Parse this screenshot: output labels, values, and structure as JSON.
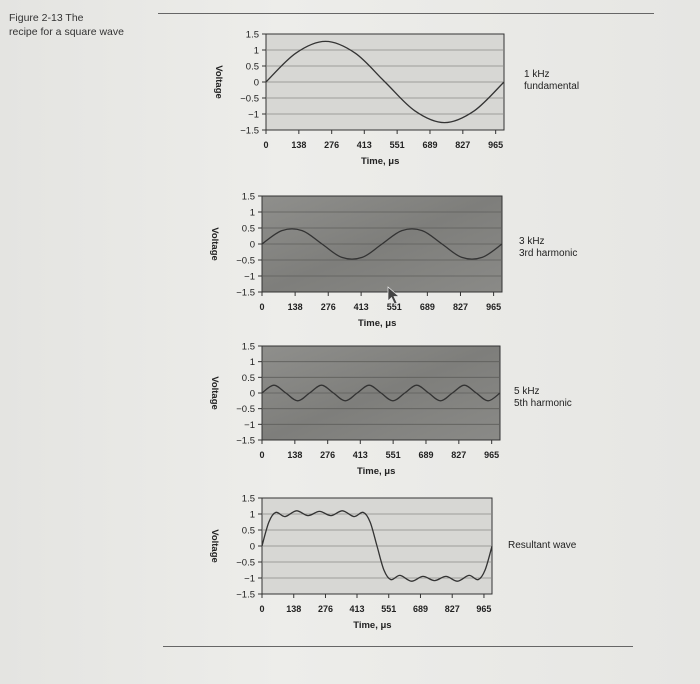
{
  "figure": {
    "caption": "Figure 2-13  The\nrecipe for a square wave"
  },
  "chart_data": [
    {
      "type": "line",
      "xlabel": "Time, μs",
      "ylabel": "Voltage",
      "x_ticks": [
        0,
        138,
        276,
        413,
        551,
        689,
        827,
        965
      ],
      "y_ticks": [
        "1.5",
        "1",
        "0.5",
        "0",
        "−0.5",
        "−1",
        "−1.5"
      ],
      "xlim": [
        0,
        1000
      ],
      "ylim": [
        -1.5,
        1.5
      ],
      "grid": true,
      "side_label": "1 kHz\nfundamental",
      "series": [
        {
          "x": [
            0,
            125,
            250,
            375,
            500,
            625,
            750,
            875,
            1000
          ],
          "values": [
            0,
            0.9,
            1.27,
            0.9,
            0,
            -0.9,
            -1.27,
            -0.9,
            0
          ]
        }
      ]
    },
    {
      "type": "line",
      "xlabel": "Time, μs",
      "ylabel": "Voltage",
      "x_ticks": [
        0,
        138,
        276,
        413,
        551,
        689,
        827,
        965
      ],
      "y_ticks": [
        "1.5",
        "1",
        "0.5",
        "0",
        "−0.5",
        "−1",
        "−1.5"
      ],
      "xlim": [
        0,
        1000
      ],
      "ylim": [
        -1.5,
        1.5
      ],
      "grid": true,
      "side_label": "3 kHz\n3rd harmonic",
      "series": [
        {
          "x": [
            0,
            83,
            167,
            250,
            333,
            417,
            500,
            583,
            667,
            750,
            833,
            917,
            1000
          ],
          "values": [
            0,
            0.42,
            0.42,
            0,
            -0.42,
            -0.42,
            0,
            0.42,
            0.42,
            0,
            -0.42,
            -0.42,
            0
          ]
        }
      ]
    },
    {
      "type": "line",
      "xlabel": "Time, μs",
      "ylabel": "Voltage",
      "x_ticks": [
        0,
        138,
        276,
        413,
        551,
        689,
        827,
        965
      ],
      "y_ticks": [
        "1.5",
        "1",
        "0.5",
        "0",
        "−0.5",
        "−1",
        "−1.5"
      ],
      "xlim": [
        0,
        1000
      ],
      "ylim": [
        -1.5,
        1.5
      ],
      "grid": true,
      "side_label": "5 kHz\n5th harmonic",
      "series": [
        {
          "x": [
            0,
            50,
            100,
            150,
            200,
            250,
            300,
            350,
            400,
            450,
            500,
            550,
            600,
            650,
            700,
            750,
            800,
            850,
            900,
            950,
            1000
          ],
          "values": [
            0,
            0.25,
            0,
            -0.25,
            0,
            0.25,
            0,
            -0.25,
            0,
            0.25,
            0,
            -0.25,
            0,
            0.25,
            0,
            -0.25,
            0,
            0.25,
            0,
            -0.25,
            0
          ]
        }
      ]
    },
    {
      "type": "line",
      "xlabel": "Time, μs",
      "ylabel": "Voltage",
      "x_ticks": [
        0,
        138,
        276,
        413,
        551,
        689,
        827,
        965
      ],
      "y_ticks": [
        "1.5",
        "1",
        "0.5",
        "0",
        "−0.5",
        "−1",
        "−1.5"
      ],
      "xlim": [
        0,
        1000
      ],
      "ylim": [
        -1.5,
        1.5
      ],
      "grid": true,
      "side_label": "Resultant wave",
      "series": [
        {
          "x": [
            0,
            30,
            60,
            100,
            150,
            200,
            250,
            300,
            350,
            400,
            440,
            470,
            500,
            530,
            560,
            600,
            650,
            700,
            750,
            800,
            850,
            900,
            940,
            970,
            1000
          ],
          "values": [
            0,
            0.75,
            1.05,
            0.92,
            1.1,
            0.95,
            1.08,
            0.95,
            1.1,
            0.92,
            1.05,
            0.75,
            0,
            -0.75,
            -1.05,
            -0.92,
            -1.1,
            -0.95,
            -1.08,
            -0.95,
            -1.1,
            -0.92,
            -1.05,
            -0.75,
            0
          ]
        }
      ]
    }
  ]
}
